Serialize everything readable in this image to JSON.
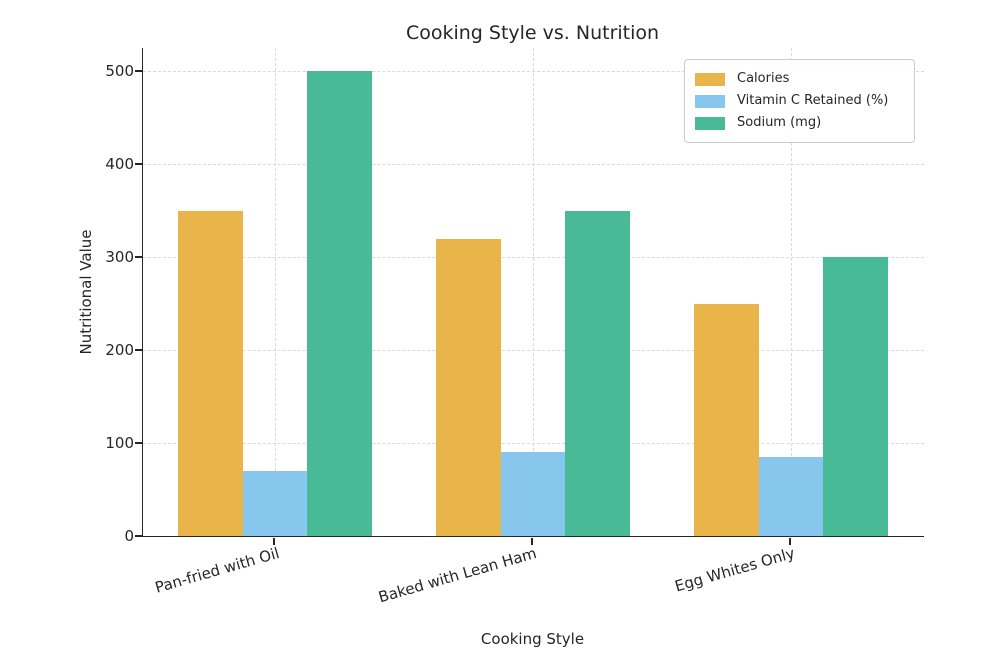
{
  "chart_data": {
    "type": "bar",
    "title": "Cooking Style vs. Nutrition",
    "xlabel": "Cooking Style",
    "ylabel": "Nutritional Value",
    "categories": [
      "Pan-fried with Oil",
      "Baked with Lean Ham",
      "Egg Whites Only"
    ],
    "series": [
      {
        "name": "Calories",
        "color": "#E9B54B",
        "values": [
          350,
          320,
          250
        ]
      },
      {
        "name": "Vitamin C Retained (%)",
        "color": "#87C7EE",
        "values": [
          70,
          90,
          85
        ]
      },
      {
        "name": "Sodium (mg)",
        "color": "#48BB96",
        "values": [
          500,
          350,
          300
        ]
      }
    ],
    "yticks": [
      0,
      100,
      200,
      300,
      400,
      500
    ],
    "ylim": [
      0,
      525
    ],
    "grid": true,
    "grid_style": "dashed",
    "legend_position": "upper right",
    "bar_width_units": 0.25,
    "colors": {
      "text": "#262626",
      "grid": "#d9d9d9",
      "spine": "#262626",
      "background": "#ffffff"
    }
  }
}
